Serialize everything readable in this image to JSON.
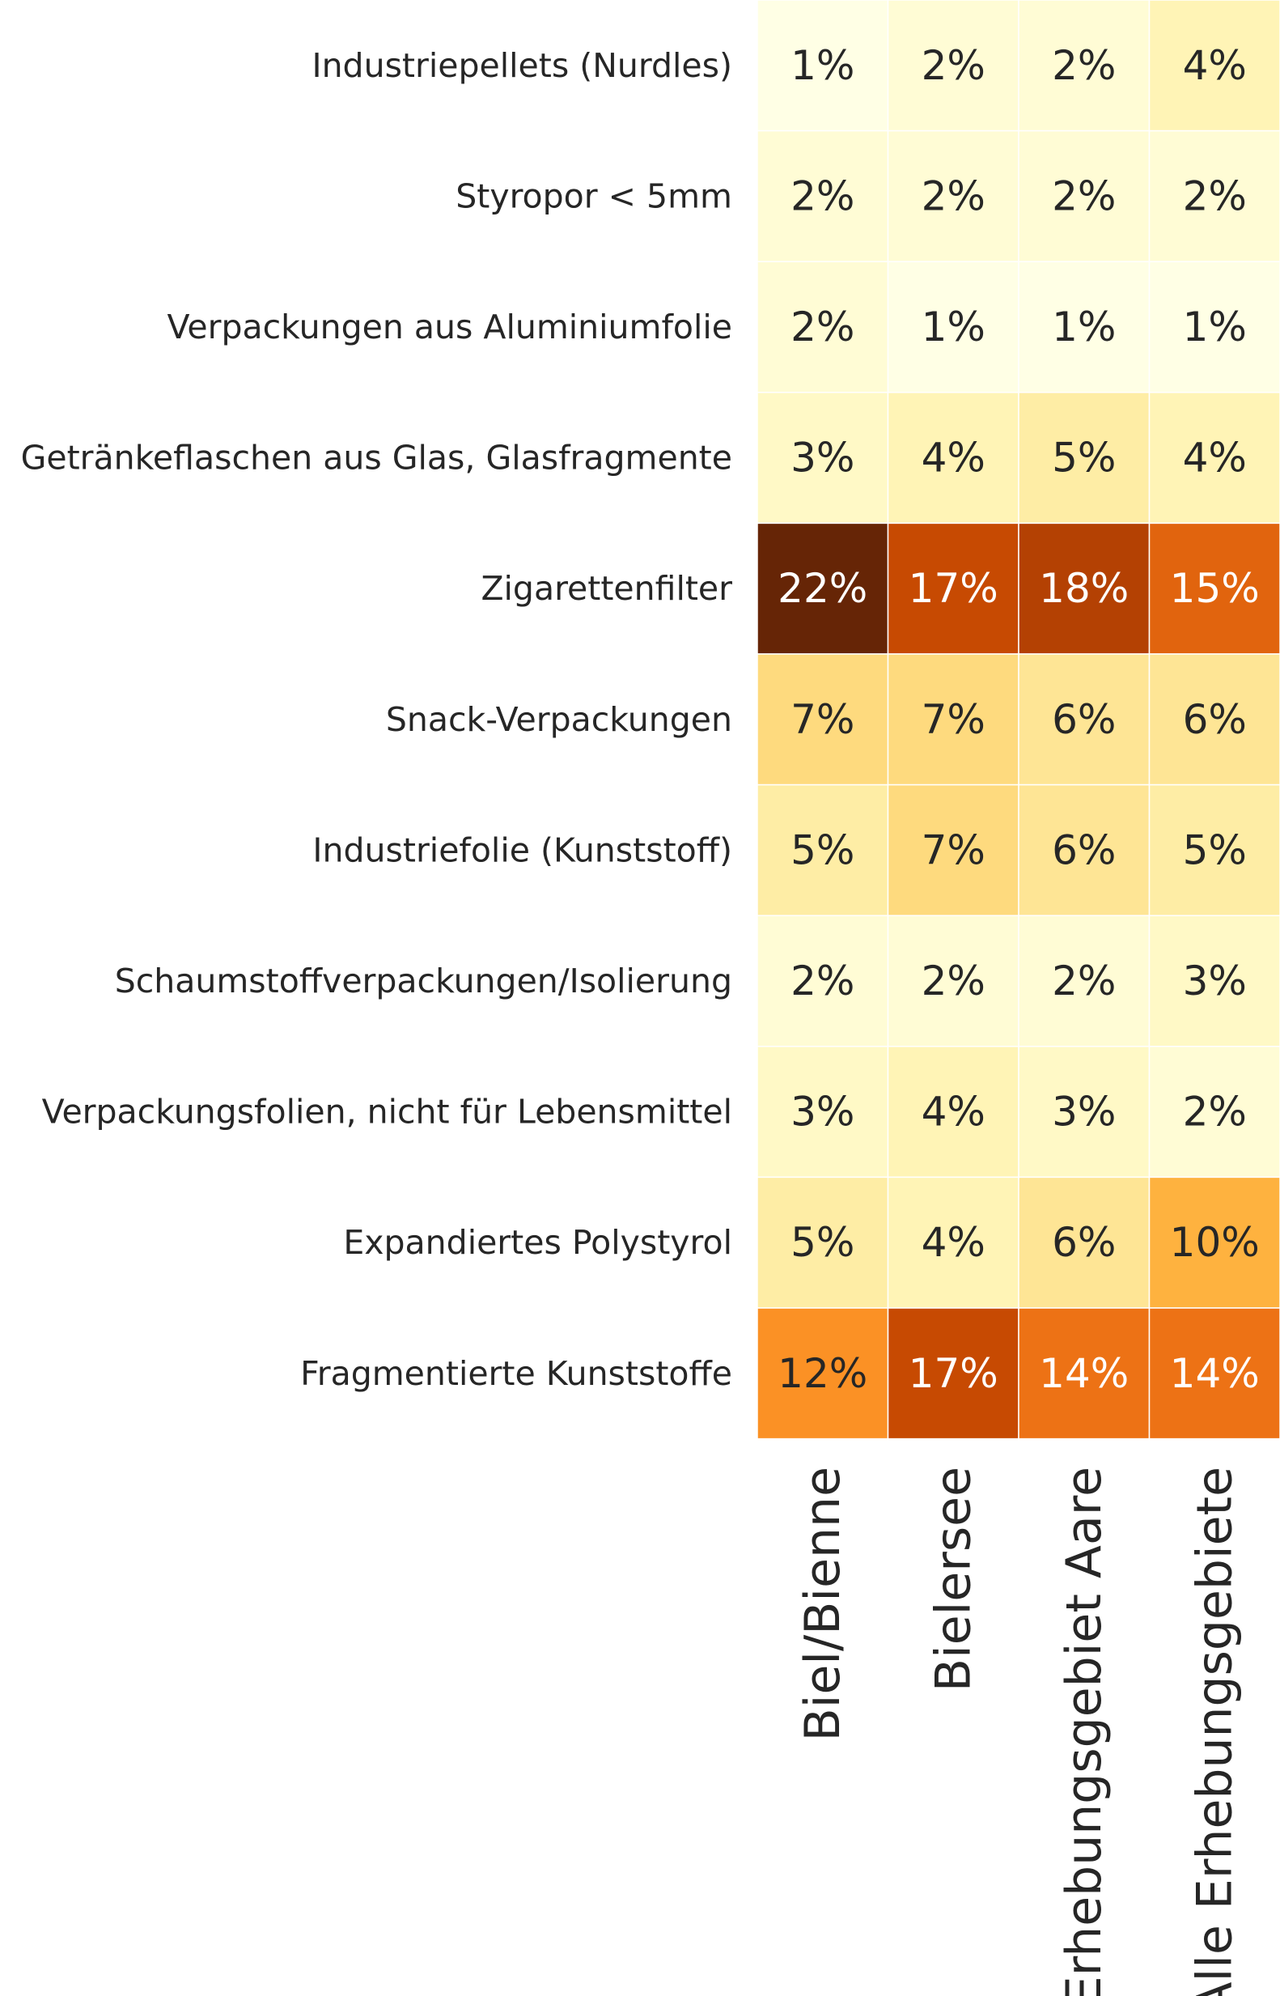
{
  "chart_data": {
    "type": "heatmap",
    "rows": [
      "Industriepellets (Nurdles)",
      "Styropor < 5mm",
      "Verpackungen aus Aluminiumfolie",
      "Getränkeflaschen aus Glas, Glasfragmente",
      "Zigarettenfilter",
      "Snack-Verpackungen",
      "Industriefolie (Kunststoff)",
      "Schaumstoffverpackungen/Isolierung",
      "Verpackungsfolien, nicht für Lebensmittel",
      "Expandiertes Polystyrol",
      "Fragmentierte Kunststoffe"
    ],
    "columns": [
      "Biel/Bienne",
      "Bielersee",
      "Erhebungsgebiet Aare",
      "Alle Erhebungsgebiete"
    ],
    "values": [
      [
        1,
        2,
        2,
        4
      ],
      [
        2,
        2,
        2,
        2
      ],
      [
        2,
        1,
        1,
        1
      ],
      [
        3,
        4,
        5,
        4
      ],
      [
        22,
        17,
        18,
        15
      ],
      [
        7,
        7,
        6,
        6
      ],
      [
        5,
        7,
        6,
        5
      ],
      [
        2,
        2,
        2,
        3
      ],
      [
        3,
        4,
        3,
        2
      ],
      [
        5,
        4,
        6,
        10
      ],
      [
        12,
        17,
        14,
        14
      ]
    ],
    "value_labels": [
      [
        "1%",
        "2%",
        "2%",
        "4%"
      ],
      [
        "2%",
        "2%",
        "2%",
        "2%"
      ],
      [
        "2%",
        "1%",
        "1%",
        "1%"
      ],
      [
        "3%",
        "4%",
        "5%",
        "4%"
      ],
      [
        "22%",
        "17%",
        "18%",
        "15%"
      ],
      [
        "7%",
        "7%",
        "6%",
        "6%"
      ],
      [
        "5%",
        "7%",
        "6%",
        "5%"
      ],
      [
        "2%",
        "2%",
        "2%",
        "3%"
      ],
      [
        "3%",
        "4%",
        "3%",
        "2%"
      ],
      [
        "5%",
        "4%",
        "6%",
        "10%"
      ],
      [
        "12%",
        "17%",
        "14%",
        "14%"
      ]
    ],
    "value_unit": "%",
    "colormap": "YlOrBr",
    "color_scale": [
      {
        "stop": 0.0,
        "color": "#ffffe5"
      },
      {
        "stop": 0.125,
        "color": "#fff7bc"
      },
      {
        "stop": 0.25,
        "color": "#fee391"
      },
      {
        "stop": 0.375,
        "color": "#fec44f"
      },
      {
        "stop": 0.5,
        "color": "#fe9929"
      },
      {
        "stop": 0.625,
        "color": "#ec7014"
      },
      {
        "stop": 0.75,
        "color": "#cc4c02"
      },
      {
        "stop": 0.875,
        "color": "#993404"
      },
      {
        "stop": 1.0,
        "color": "#662506"
      }
    ],
    "value_range": [
      1,
      22
    ],
    "colorbar": false,
    "title": "",
    "xlabel": "",
    "ylabel": "",
    "text_colors": {
      "dark": "#262626",
      "light": "#ffffff"
    },
    "cell_border_color": "#ffffff"
  }
}
